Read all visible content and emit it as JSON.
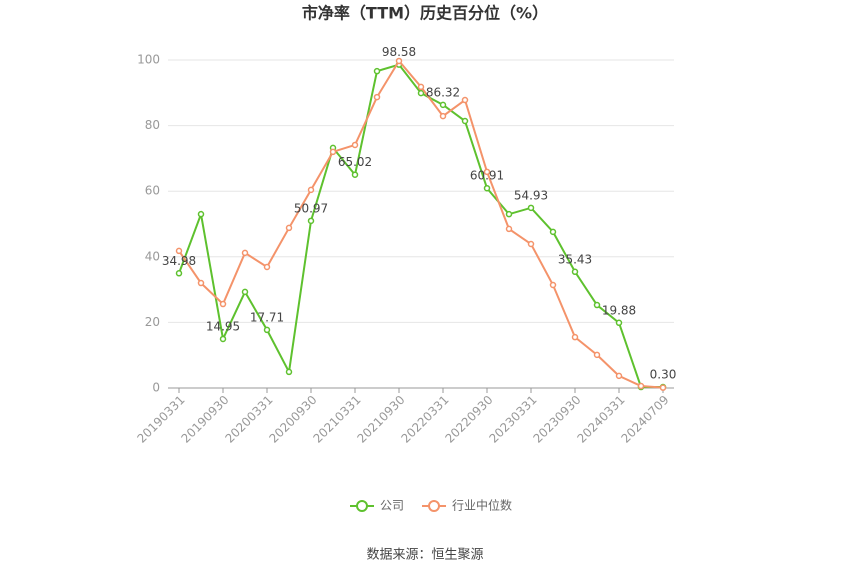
{
  "chart_data": {
    "type": "line",
    "title": "市净率（TTM）历史百分位（%）",
    "categories": [
      "20190331",
      null,
      "20190930",
      null,
      "20200331",
      null,
      "20200930",
      null,
      "20210331",
      null,
      "20210930",
      null,
      "20220331",
      null,
      "20220930",
      null,
      "20230331",
      null,
      "20230930",
      null,
      "20240331",
      null,
      "20240709"
    ],
    "series": [
      {
        "name": "公司",
        "color": "#5ec12e",
        "values": [
          34.98,
          53.0,
          14.95,
          29.3,
          17.71,
          4.9,
          50.97,
          73.2,
          65.02,
          96.6,
          98.58,
          89.9,
          86.32,
          81.4,
          60.91,
          53.0,
          54.93,
          47.6,
          35.43,
          25.3,
          19.88,
          0.3,
          0.3
        ],
        "value_labels": [
          "34.98",
          null,
          "14.95",
          null,
          "17.71",
          null,
          "50.97",
          null,
          "65.02",
          null,
          "98.58",
          null,
          "86.32",
          null,
          "60.91",
          null,
          "54.93",
          null,
          "35.43",
          null,
          "19.88",
          null,
          "0.30"
        ]
      },
      {
        "name": "行业中位数",
        "color": "#f4936a",
        "values": [
          41.8,
          32.0,
          25.6,
          41.2,
          36.9,
          48.8,
          60.4,
          72.0,
          74.1,
          88.7,
          99.7,
          91.8,
          82.9,
          87.8,
          65.9,
          48.5,
          43.9,
          31.4,
          15.5,
          10.1,
          3.7,
          0.6,
          0.1
        ]
      }
    ],
    "ylim": [
      0,
      100
    ],
    "yticks": [
      0,
      20,
      40,
      60,
      80,
      100
    ],
    "grid": true,
    "legend": "bottom",
    "source": "数据来源：恒生聚源"
  }
}
